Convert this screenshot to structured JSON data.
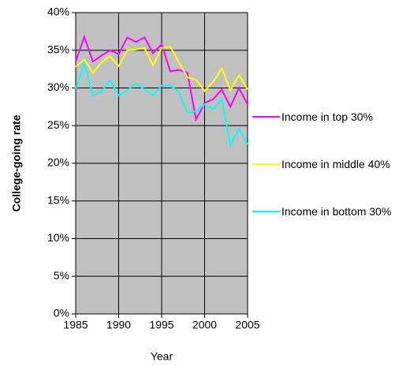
{
  "chart_data": {
    "type": "line",
    "x_label": "Year",
    "y_label": "College-going rate",
    "x": [
      1985,
      1986,
      1987,
      1988,
      1989,
      1990,
      1991,
      1992,
      1993,
      1994,
      1995,
      1996,
      1997,
      1998,
      1999,
      2000,
      2001,
      2002,
      2003,
      2004,
      2005
    ],
    "series": [
      {
        "name": "Income in top 30%",
        "color": "#ff00ff",
        "values": [
          33.5,
          36.8,
          33.5,
          34.3,
          35.0,
          34.5,
          36.7,
          36.1,
          36.7,
          34.6,
          35.8,
          32.2,
          32.4,
          32.0,
          25.8,
          28.0,
          28.5,
          29.8,
          27.5,
          30.0,
          27.8
        ]
      },
      {
        "name": "Income in middle 40%",
        "color": "#ffff00",
        "values": [
          32.8,
          33.8,
          32.0,
          33.4,
          34.2,
          32.9,
          35.0,
          35.1,
          35.3,
          33.0,
          35.3,
          35.5,
          33.4,
          31.4,
          31.1,
          29.6,
          30.8,
          32.6,
          29.7,
          31.7,
          29.8
        ]
      },
      {
        "name": "Income in bottom 30%",
        "color": "#00ffff",
        "values": [
          29.9,
          33.2,
          29.0,
          29.5,
          31.0,
          29.0,
          29.7,
          30.6,
          29.8,
          29.0,
          30.3,
          30.3,
          29.5,
          26.7,
          26.9,
          27.8,
          27.2,
          28.5,
          22.4,
          24.6,
          22.5
        ]
      }
    ],
    "xlim": [
      1985,
      2005
    ],
    "xticks": [
      1985,
      1990,
      1995,
      2000,
      2005
    ],
    "ylim": [
      0,
      40
    ],
    "yticks": [
      {
        "value": 0,
        "label": "0%"
      },
      {
        "value": 5,
        "label": "5%"
      },
      {
        "value": 10,
        "label": "10%"
      },
      {
        "value": 15,
        "label": "15%"
      },
      {
        "value": 20,
        "label": "20%"
      },
      {
        "value": 25,
        "label": "25%"
      },
      {
        "value": 30,
        "label": "30%"
      },
      {
        "value": 35,
        "label": "35%"
      },
      {
        "value": 40,
        "label": "40%"
      }
    ],
    "grid": true,
    "plot_background": "#c0c0c0",
    "legend": "right"
  }
}
